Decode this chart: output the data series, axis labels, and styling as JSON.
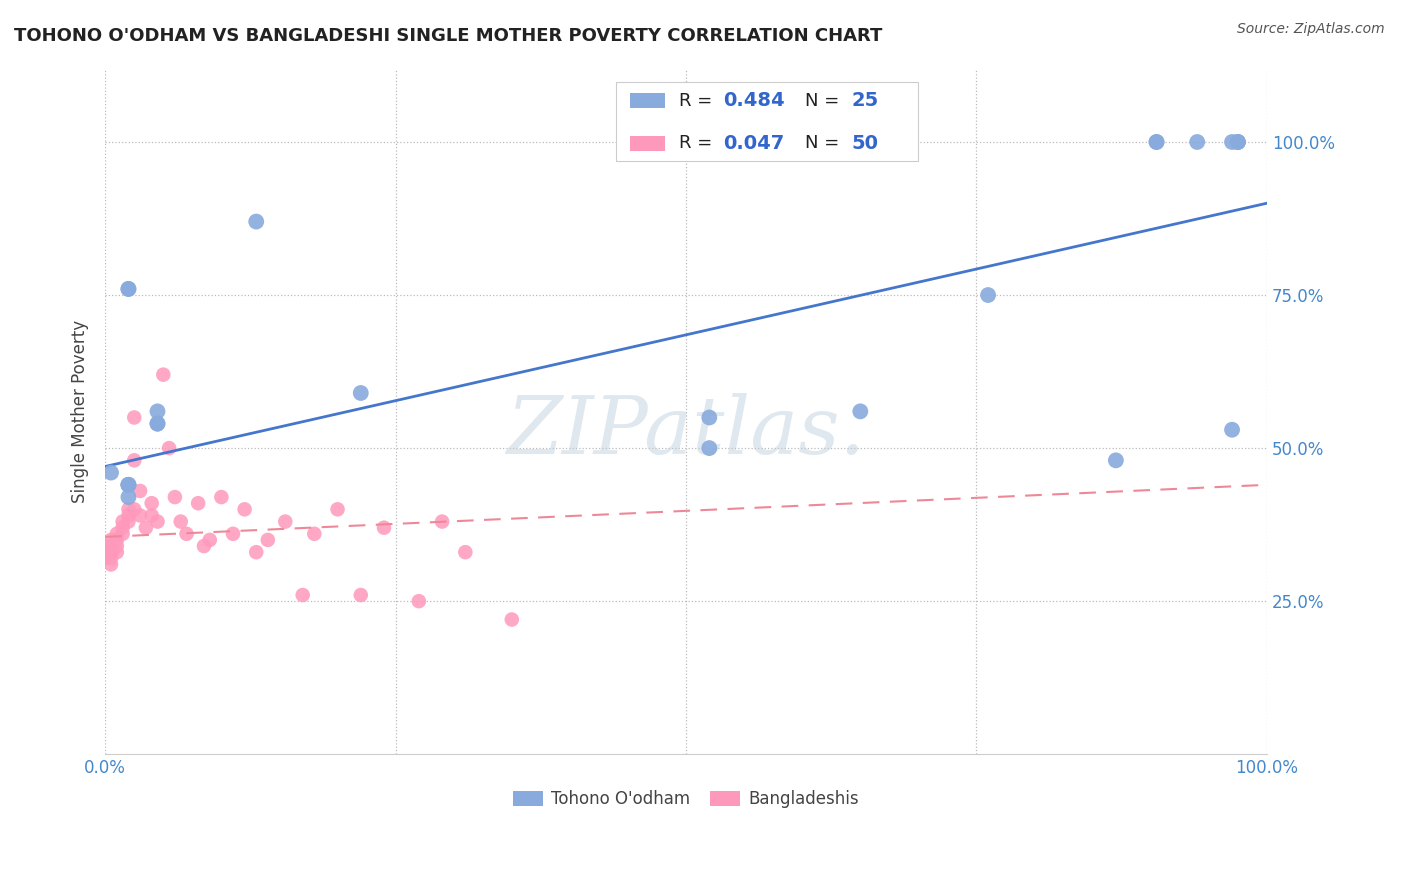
{
  "title": "TOHONO O'ODHAM VS BANGLADESHI SINGLE MOTHER POVERTY CORRELATION CHART",
  "source": "Source: ZipAtlas.com",
  "ylabel": "Single Mother Poverty",
  "legend_label1": "Tohono O'odham",
  "legend_label2": "Bangladeshis",
  "R1": 0.484,
  "N1": 25,
  "R2": 0.047,
  "N2": 50,
  "color_blue": "#88AADD",
  "color_pink": "#FF99BB",
  "color_blue_line": "#4477CC",
  "color_pink_line": "#EE8899",
  "color_blue_text": "#3366CC",
  "blue_points_x": [
    0.005,
    0.02,
    0.02,
    0.02,
    0.02,
    0.02,
    0.02,
    0.045,
    0.045,
    0.045,
    0.13,
    0.22,
    0.52,
    0.52,
    0.65,
    0.76,
    0.87,
    0.905,
    0.905,
    0.94,
    0.97,
    0.97,
    0.975,
    0.975,
    0.975
  ],
  "blue_points_y": [
    0.46,
    0.76,
    0.76,
    0.44,
    0.44,
    0.44,
    0.42,
    0.56,
    0.54,
    0.54,
    0.87,
    0.59,
    0.55,
    0.5,
    0.56,
    0.75,
    0.48,
    1.0,
    1.0,
    1.0,
    0.53,
    1.0,
    1.0,
    1.0,
    1.0
  ],
  "pink_points_x": [
    0.0,
    0.0,
    0.0,
    0.005,
    0.005,
    0.005,
    0.005,
    0.005,
    0.01,
    0.01,
    0.01,
    0.01,
    0.015,
    0.015,
    0.015,
    0.02,
    0.02,
    0.02,
    0.025,
    0.025,
    0.025,
    0.03,
    0.03,
    0.035,
    0.04,
    0.04,
    0.045,
    0.05,
    0.055,
    0.06,
    0.065,
    0.07,
    0.08,
    0.085,
    0.09,
    0.1,
    0.11,
    0.12,
    0.13,
    0.14,
    0.155,
    0.17,
    0.18,
    0.2,
    0.22,
    0.24,
    0.27,
    0.29,
    0.31,
    0.35
  ],
  "pink_points_y": [
    0.34,
    0.33,
    0.32,
    0.35,
    0.34,
    0.33,
    0.32,
    0.31,
    0.36,
    0.35,
    0.34,
    0.33,
    0.38,
    0.37,
    0.36,
    0.4,
    0.39,
    0.38,
    0.55,
    0.48,
    0.4,
    0.43,
    0.39,
    0.37,
    0.41,
    0.39,
    0.38,
    0.62,
    0.5,
    0.42,
    0.38,
    0.36,
    0.41,
    0.34,
    0.35,
    0.42,
    0.36,
    0.4,
    0.33,
    0.35,
    0.38,
    0.26,
    0.36,
    0.4,
    0.26,
    0.37,
    0.25,
    0.38,
    0.33,
    0.22
  ]
}
